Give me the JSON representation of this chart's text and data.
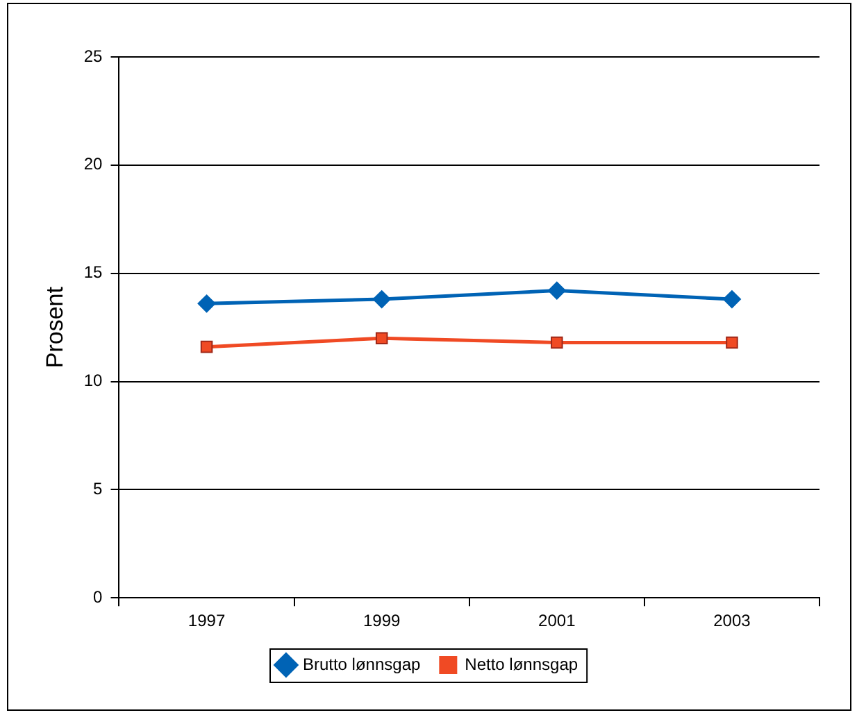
{
  "chart_data": {
    "type": "line",
    "ylabel": "Prosent",
    "categories": [
      "1997",
      "1999",
      "2001",
      "2003"
    ],
    "series": [
      {
        "name": "Brutto lønnsgap",
        "color": "#0063b5",
        "marker": "diamond",
        "values": [
          13.6,
          13.8,
          14.2,
          13.8
        ]
      },
      {
        "name": "Netto lønnsgap",
        "color": "#f04a24",
        "marker": "square",
        "values": [
          11.6,
          12.0,
          11.8,
          11.8
        ]
      }
    ],
    "ylim": [
      0,
      25
    ],
    "yticks": [
      0,
      5,
      10,
      15,
      20,
      25
    ],
    "grid": "y",
    "legend": "bottom",
    "line_style": "solid"
  }
}
